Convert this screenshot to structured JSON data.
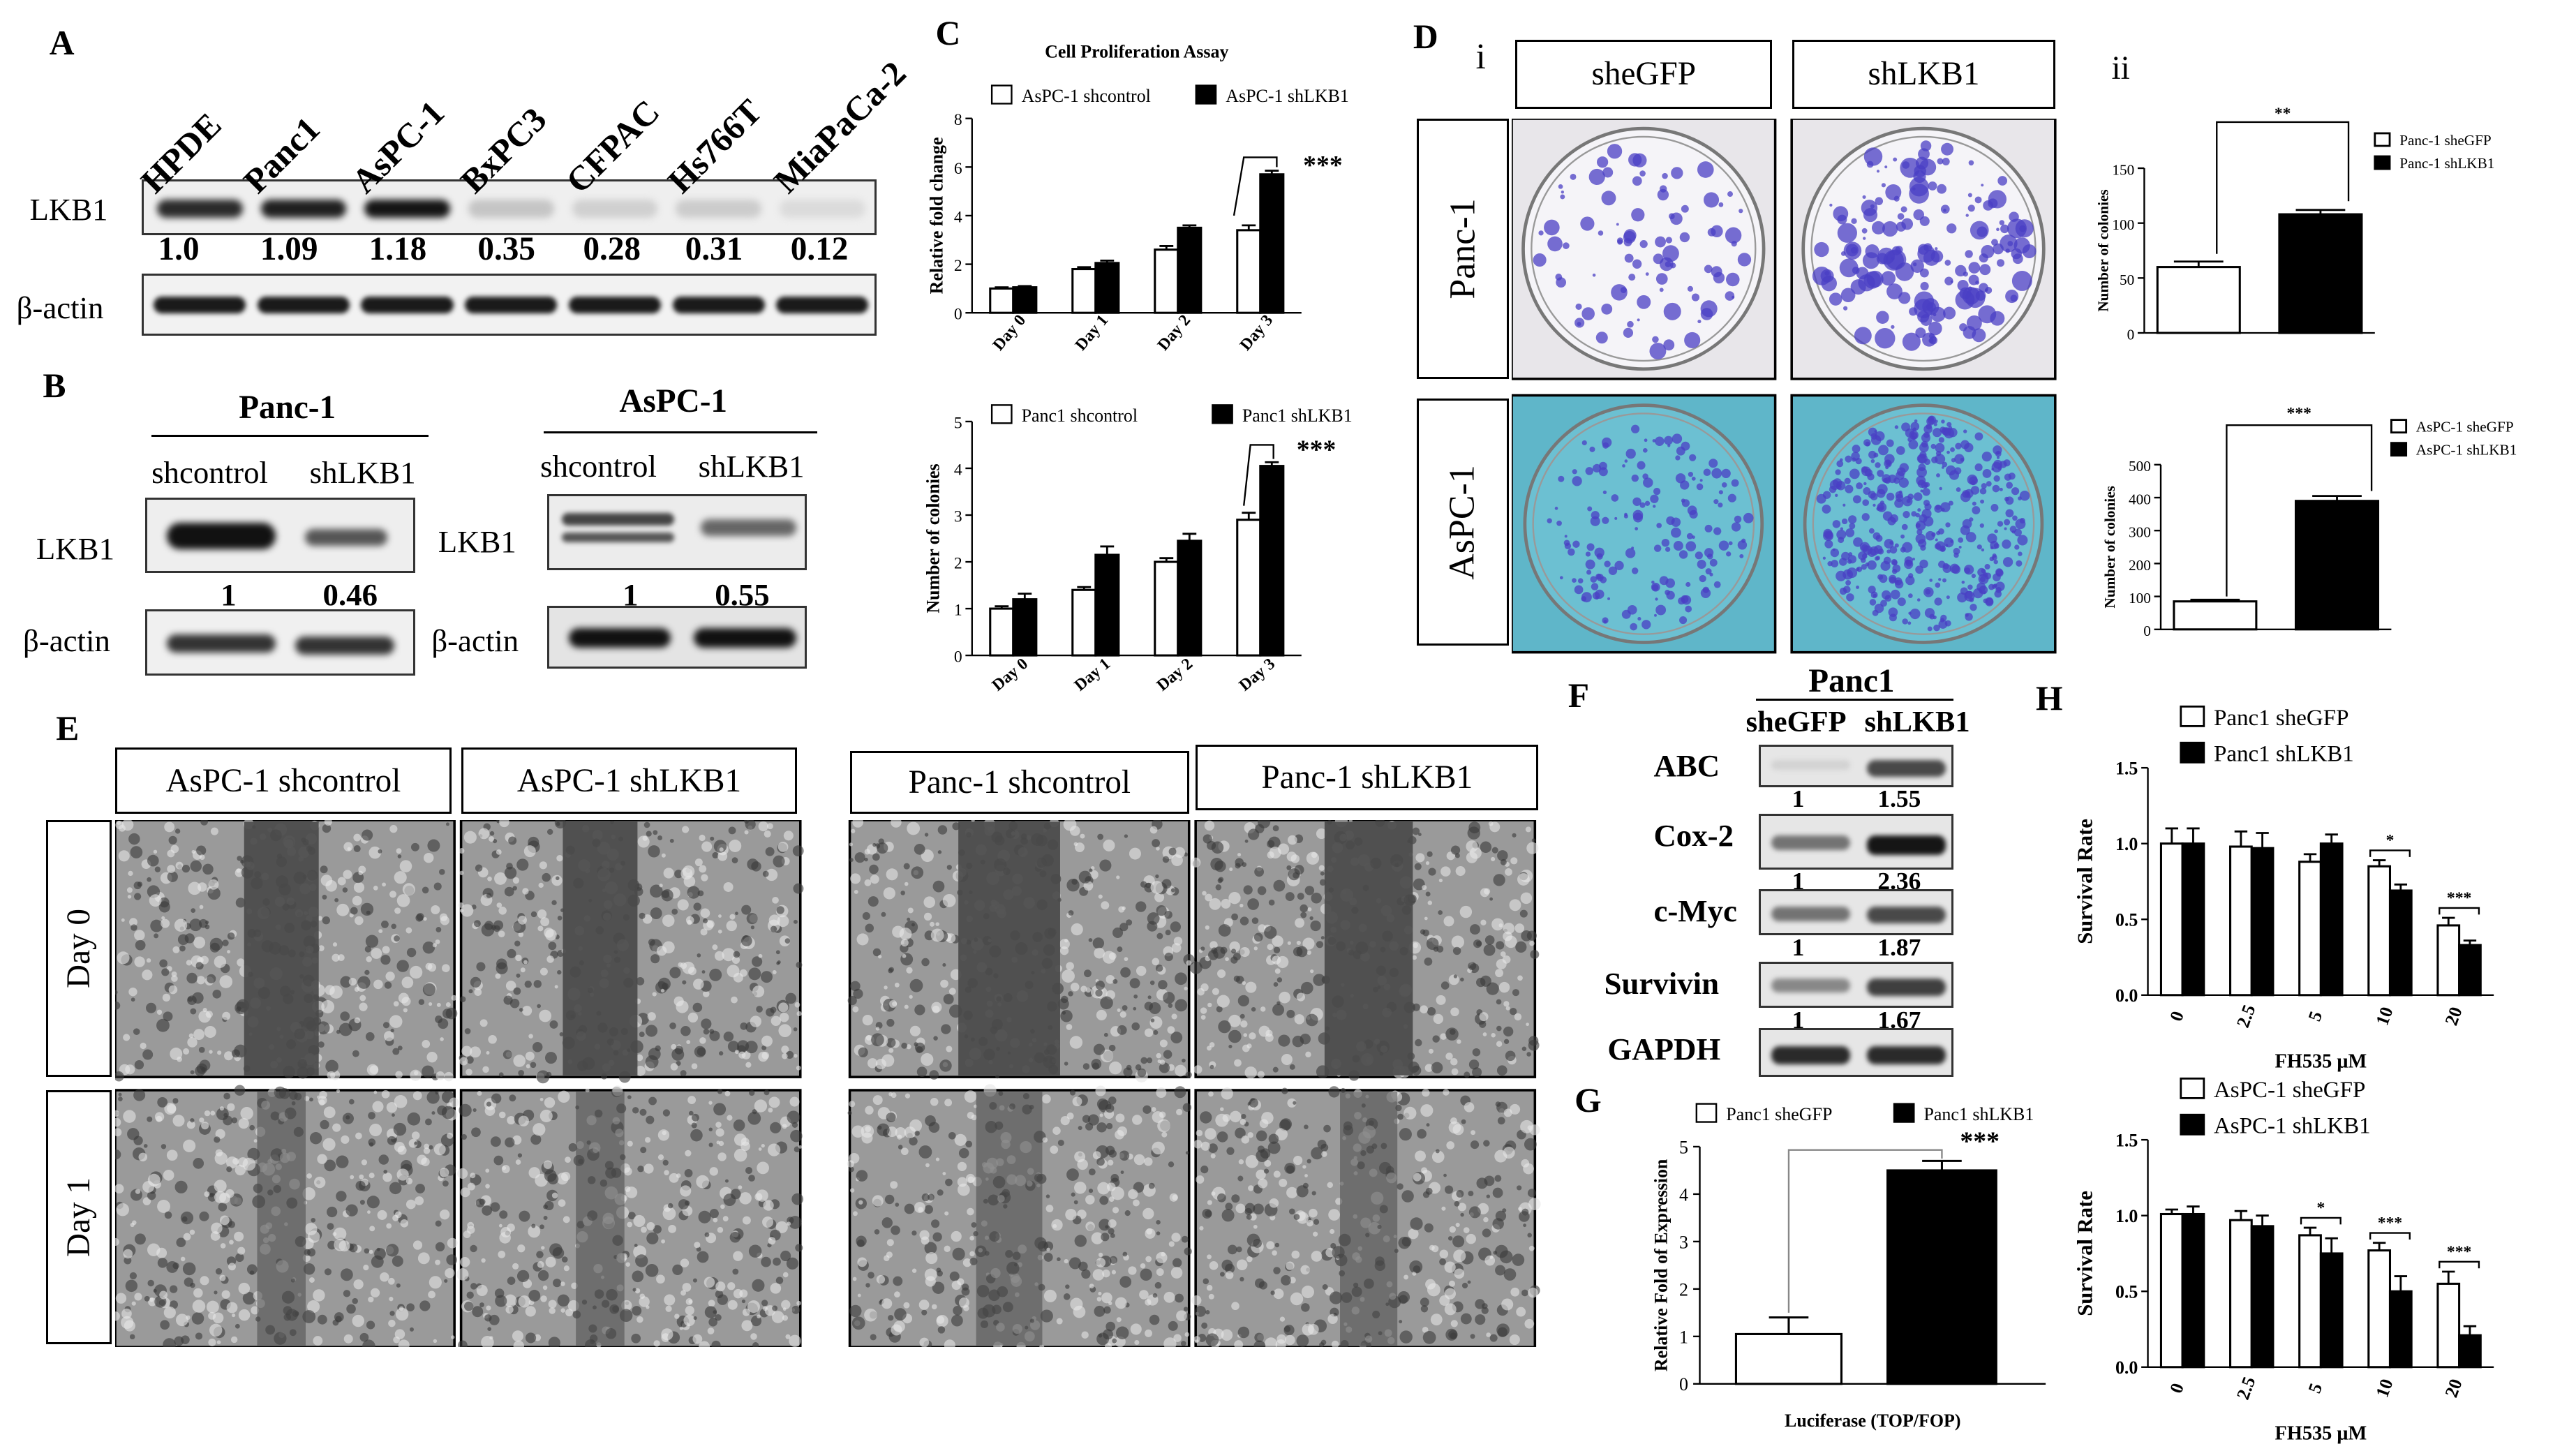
{
  "panels": {
    "A": "A",
    "B": "B",
    "C": "C",
    "D": "D",
    "E": "E",
    "F": "F",
    "G": "G",
    "H": "H"
  },
  "panelA": {
    "lanes": [
      "HPDE",
      "Panc1",
      "AsPC-1",
      "BxPC3",
      "CFPAC",
      "Hs766T",
      "MiaPaCa-2"
    ],
    "values": [
      "1.0",
      "1.09",
      "1.18",
      "0.35",
      "0.28",
      "0.31",
      "0.12"
    ],
    "band_intensity": [
      0.85,
      0.9,
      0.95,
      0.15,
      0.1,
      0.12,
      0.05
    ],
    "row1": "LKB1",
    "row2": "β-actin"
  },
  "panelB": {
    "left": {
      "title": "Panc-1",
      "lanes": [
        "shcontrol",
        "shLKB1"
      ],
      "values": [
        "1",
        "0.46"
      ],
      "row1": "LKB1",
      "row2": "β-actin"
    },
    "right": {
      "title": "AsPC-1",
      "lanes": [
        "shcontrol",
        "shLKB1"
      ],
      "values": [
        "1",
        "0.55"
      ],
      "row1": "LKB1",
      "row2": "β-actin"
    }
  },
  "panelD": {
    "sub_i": "i",
    "sub_ii": "ii",
    "cols": [
      "sheGFP",
      "shLKB1"
    ],
    "rows": [
      "Panc-1",
      "AsPC-1"
    ],
    "colors": {
      "panc_bg": "#e8e6ea",
      "aspc_bg": "#5fb6c9",
      "colony": "#4a3fc4"
    }
  },
  "panelE": {
    "headers": [
      "AsPC-1   shcontrol",
      "AsPC-1  shLKB1",
      "Panc-1   shcontrol",
      "Panc-1  shLKB1"
    ],
    "rows": [
      "Day 0",
      "Day 1"
    ]
  },
  "panelF": {
    "title": "Panc1",
    "lanes": [
      "sheGFP",
      "shLKB1"
    ],
    "rows": [
      {
        "label": "ABC",
        "v1": "1",
        "v2": "1.55"
      },
      {
        "label": "Cox-2",
        "v1": "1",
        "v2": "2.36"
      },
      {
        "label": "c-Myc",
        "v1": "1",
        "v2": "1.87"
      },
      {
        "label": "Survivin",
        "v1": "1",
        "v2": "1.67"
      },
      {
        "label": "GAPDH",
        "v1": "",
        "v2": ""
      }
    ]
  },
  "chart_data": [
    {
      "id": "C-top",
      "type": "bar",
      "title": "Cell Proliferation Assay",
      "ylabel": "Relative fold change",
      "categories": [
        "Day 0",
        "Day 1",
        "Day 2",
        "Day 3"
      ],
      "ylim": [
        0,
        8
      ],
      "yticks": [
        0,
        2,
        4,
        6,
        8
      ],
      "series": [
        {
          "name": "AsPC-1 shcontrol",
          "values": [
            1.0,
            1.8,
            2.6,
            3.4
          ],
          "err": [
            0.05,
            0.08,
            0.15,
            0.2
          ]
        },
        {
          "name": "AsPC-1 shLKB1",
          "values": [
            1.05,
            2.05,
            3.5,
            5.7
          ],
          "err": [
            0.05,
            0.1,
            0.1,
            0.15
          ]
        }
      ],
      "sig": [
        {
          "cat": 3,
          "text": "***"
        }
      ]
    },
    {
      "id": "C-bottom",
      "type": "bar",
      "ylabel": "Number of colonies",
      "categories": [
        "Day 0",
        "Day 1",
        "Day 2",
        "Day 3"
      ],
      "ylim": [
        0,
        5
      ],
      "yticks": [
        0,
        1,
        2,
        3,
        4,
        5
      ],
      "series": [
        {
          "name": "Panc1 shcontrol",
          "values": [
            1.0,
            1.4,
            2.0,
            2.9
          ],
          "err": [
            0.05,
            0.06,
            0.08,
            0.15
          ]
        },
        {
          "name": "Panc1 shLKB1",
          "values": [
            1.2,
            2.15,
            2.45,
            4.05
          ],
          "err": [
            0.12,
            0.18,
            0.15,
            0.08
          ]
        }
      ],
      "sig": [
        {
          "cat": 3,
          "text": "***"
        }
      ]
    },
    {
      "id": "D-ii-top",
      "type": "bar",
      "ylabel": "Number of colonies",
      "categories": [
        ""
      ],
      "ylim": [
        0,
        150
      ],
      "yticks": [
        0,
        50,
        100,
        150
      ],
      "series": [
        {
          "name": "Panc-1 sheGFP",
          "values": [
            60
          ],
          "err": [
            5
          ]
        },
        {
          "name": "Panc-1 shLKB1",
          "values": [
            108
          ],
          "err": [
            4
          ]
        }
      ],
      "sig": [
        {
          "text": "**"
        }
      ]
    },
    {
      "id": "D-ii-bottom",
      "type": "bar",
      "ylabel": "Number of colonies",
      "categories": [
        ""
      ],
      "ylim": [
        0,
        500
      ],
      "yticks": [
        0,
        100,
        200,
        300,
        400,
        500
      ],
      "series": [
        {
          "name": "AsPC-1 sheGFP",
          "values": [
            85
          ],
          "err": [
            5
          ]
        },
        {
          "name": "AsPC-1 shLKB1",
          "values": [
            390
          ],
          "err": [
            15
          ]
        }
      ],
      "sig": [
        {
          "text": "***"
        }
      ]
    },
    {
      "id": "G",
      "type": "bar",
      "ylabel": "Relative Fold of Expression",
      "xlabel": "Luciferase (TOP/FOP)",
      "categories": [
        "Luciferase (TOP/FOP)"
      ],
      "ylim": [
        0,
        5
      ],
      "yticks": [
        0,
        1,
        2,
        3,
        4,
        5
      ],
      "series": [
        {
          "name": "Panc1 sheGFP",
          "values": [
            1.05
          ],
          "err": [
            0.35
          ]
        },
        {
          "name": "Panc1 shLKB1",
          "values": [
            4.5
          ],
          "err": [
            0.2
          ]
        }
      ],
      "sig": [
        {
          "text": "***"
        }
      ]
    },
    {
      "id": "H-top",
      "type": "bar",
      "ylabel": "Survival Rate",
      "xlabel": "FH535 μM",
      "categories": [
        "0",
        "2.5",
        "5",
        "10",
        "20"
      ],
      "ylim": [
        0,
        1.5
      ],
      "yticks": [
        0.0,
        0.5,
        1.0,
        1.5
      ],
      "series": [
        {
          "name": "Panc1 sheGFP",
          "values": [
            1.0,
            0.98,
            0.88,
            0.85,
            0.46
          ],
          "err": [
            0.1,
            0.1,
            0.05,
            0.04,
            0.05
          ]
        },
        {
          "name": "Panc1 shLKB1",
          "values": [
            1.0,
            0.97,
            1.0,
            0.69,
            0.33
          ],
          "err": [
            0.1,
            0.1,
            0.06,
            0.04,
            0.03
          ]
        }
      ],
      "sig": [
        {
          "cat": 3,
          "text": "*"
        },
        {
          "cat": 4,
          "text": "***"
        }
      ]
    },
    {
      "id": "H-bottom",
      "type": "bar",
      "ylabel": "Survival Rate",
      "xlabel": "FH535 μM",
      "categories": [
        "0",
        "2.5",
        "5",
        "10",
        "20"
      ],
      "ylim": [
        0,
        1.5
      ],
      "yticks": [
        0.0,
        0.5,
        1.0,
        1.5
      ],
      "series": [
        {
          "name": "AsPC-1 sheGFP",
          "values": [
            1.01,
            0.97,
            0.87,
            0.77,
            0.55
          ],
          "err": [
            0.03,
            0.06,
            0.05,
            0.05,
            0.08
          ]
        },
        {
          "name": "AsPC-1 shLKB1",
          "values": [
            1.01,
            0.93,
            0.75,
            0.5,
            0.21
          ],
          "err": [
            0.05,
            0.07,
            0.1,
            0.1,
            0.06
          ]
        }
      ],
      "sig": [
        {
          "cat": 2,
          "text": "*"
        },
        {
          "cat": 3,
          "text": "***"
        },
        {
          "cat": 4,
          "text": "***"
        }
      ]
    }
  ]
}
